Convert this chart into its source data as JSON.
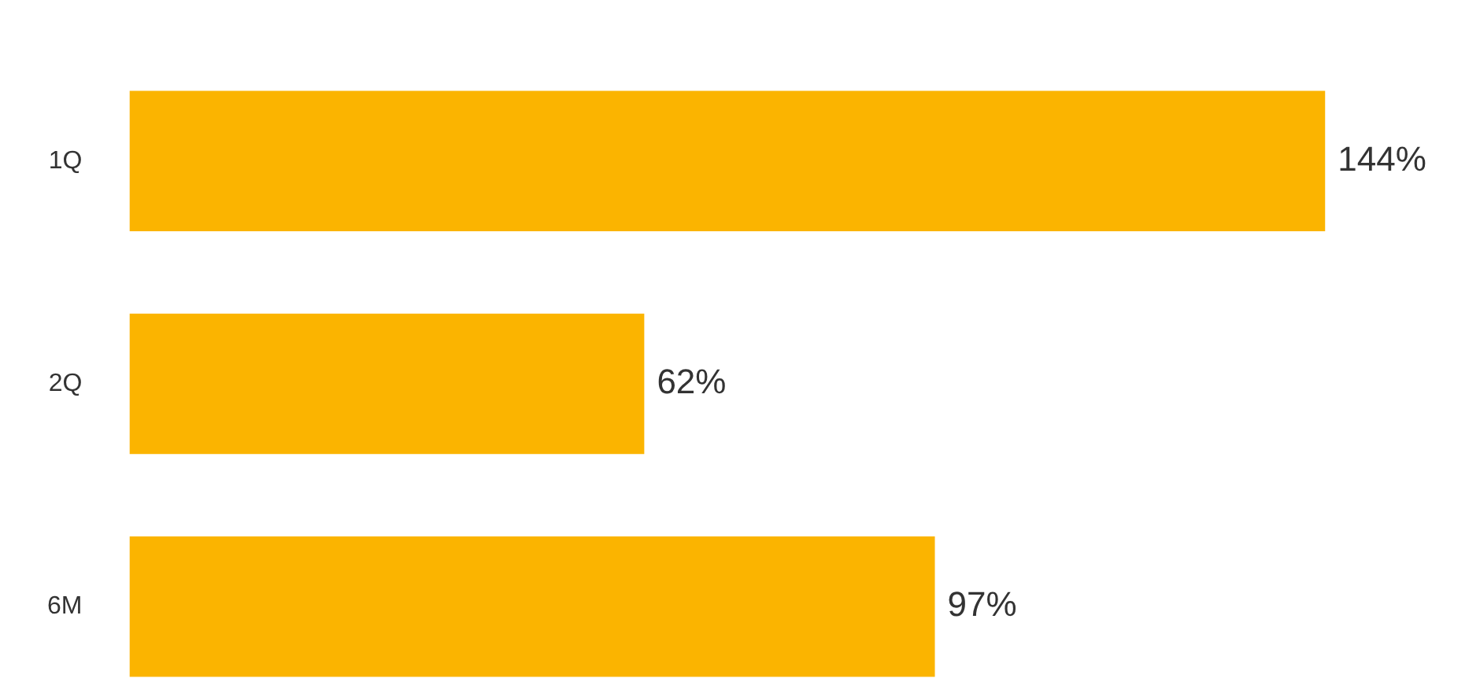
{
  "chart_data": {
    "type": "bar",
    "orientation": "horizontal",
    "categories": [
      "1Q",
      "2Q",
      "6M"
    ],
    "values": [
      144,
      62,
      97
    ],
    "color": "#fbb400",
    "value_labels": [
      "144%",
      "62%",
      "97%"
    ],
    "grid": false,
    "legend": false,
    "tick_labels": "y"
  }
}
